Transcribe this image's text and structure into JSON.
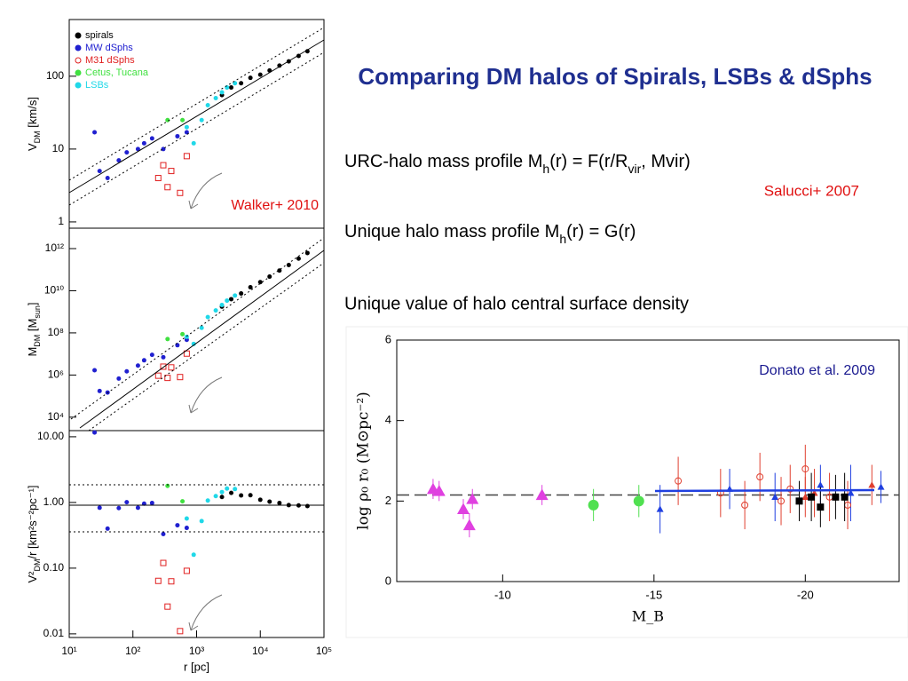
{
  "slide": {
    "title": "Comparing DM halos of Spirals, LSBs & dSphs",
    "line1_parts": [
      "URC-halo mass profile  M",
      "h",
      "(r) = F(r/R",
      "vir",
      ", Mvir)"
    ],
    "citation1": "Salucci+ 2007",
    "line2_parts": [
      "Unique  halo mass profile M",
      "h",
      "(r) = G(r)"
    ],
    "line3": "Unique value of halo central surface density"
  },
  "chart_data": [
    {
      "type": "scatter",
      "xlog": true,
      "ylog": true,
      "xlim": [
        10,
        100000
      ],
      "ylim": [
        0.82,
        600
      ],
      "yticks": [
        1,
        10,
        100
      ],
      "ylabel_parts": [
        "V",
        "DM",
        " [km/s]"
      ],
      "annotation": "Walker+ 2010",
      "legend": "top-left",
      "series": [
        {
          "name": "spirals",
          "color": "#000000",
          "marker": "dot",
          "x": [
            2500,
            3500,
            5000,
            7000,
            10000,
            14000,
            20000,
            28000,
            40000,
            55000
          ],
          "values": [
            55,
            70,
            80,
            95,
            105,
            120,
            140,
            160,
            190,
            220
          ]
        },
        {
          "name": "MW dSphs",
          "color": "#2020d0",
          "marker": "dot",
          "x": [
            25,
            30,
            40,
            60,
            80,
            120,
            150,
            200,
            300,
            500,
            700
          ],
          "values": [
            17,
            5,
            4,
            7,
            9,
            10,
            12,
            14,
            10,
            15,
            17
          ]
        },
        {
          "name": "M31 dSphs",
          "color": "#e02020",
          "marker": "square-open",
          "x": [
            250,
            300,
            350,
            400,
            550,
            700
          ],
          "values": [
            4,
            6,
            3,
            5,
            2.5,
            8
          ]
        },
        {
          "name": "Cetus, Tucana",
          "color": "#40e040",
          "marker": "dot",
          "x": [
            350,
            600
          ],
          "values": [
            25,
            25
          ]
        },
        {
          "name": "LSBs",
          "color": "#20d8e8",
          "marker": "dot",
          "x": [
            700,
            900,
            1200,
            1500,
            2000,
            2500,
            3000,
            4000
          ],
          "values": [
            20,
            12,
            25,
            40,
            50,
            60,
            70,
            80
          ]
        }
      ]
    },
    {
      "type": "scatter",
      "xlog": true,
      "ylog": true,
      "xlim": [
        10,
        100000
      ],
      "ylim": [
        2300,
        9300000000000.0
      ],
      "yticks": [
        {
          "value": 10000,
          "label": "10⁴"
        },
        {
          "value": 1000000,
          "label": "10⁶"
        },
        {
          "value": 100000000,
          "label": "10⁸"
        },
        {
          "value": 10000000000,
          "label": "10¹⁰"
        },
        {
          "value": 1000000000000,
          "label": "10¹²"
        }
      ],
      "ylabel_parts": [
        "M",
        "DM",
        " [M",
        "sun",
        "]"
      ],
      "series": [
        {
          "name": "spirals",
          "color": "#000000",
          "marker": "dot",
          "x": [
            2500,
            3500,
            5000,
            7000,
            10000,
            14000,
            20000,
            28000,
            40000,
            55000
          ],
          "values": [
            1750000000.0,
            3980000000.0,
            7400000000.0,
            14700000000.0,
            25600000000.0,
            46800000000.0,
            91000000000.0,
            166000000000.0,
            335000000000.0,
            618000000000.0
          ]
        },
        {
          "name": "MW dSphs",
          "color": "#2020d0",
          "marker": "dot",
          "x": [
            25,
            30,
            40,
            60,
            80,
            120,
            150,
            200,
            300,
            500,
            700
          ],
          "values": [
            1680000.0,
            174000.0,
            148000.0,
            680000.0,
            1500000.0,
            2800000.0,
            5000000.0,
            9100000.0,
            7000000.0,
            26000000.0,
            47000000.0
          ]
        },
        {
          "name": "M31 dSphs",
          "color": "#e02020",
          "marker": "square-open",
          "x": [
            250,
            300,
            350,
            400,
            550,
            700
          ],
          "values": [
            930000.0,
            2500000.0,
            730000.0,
            2300000.0,
            800000.0,
            10400000.0
          ]
        },
        {
          "name": "Cetus, Tucana",
          "color": "#40e040",
          "marker": "dot",
          "x": [
            350,
            600
          ],
          "values": [
            51000000.0,
            87000000.0
          ]
        },
        {
          "name": "LSBs",
          "color": "#20d8e8",
          "marker": "dot",
          "x": [
            700,
            900,
            1200,
            1500,
            2000,
            2500,
            3000,
            4000
          ],
          "values": [
            65000000.0,
            30000000.0,
            174000000.0,
            560000000.0,
            1160000000.0,
            2100000000.0,
            3400000000.0,
            5900000000.0
          ]
        }
      ]
    },
    {
      "type": "scatter",
      "xlog": true,
      "ylog": true,
      "xlim": [
        10,
        100000
      ],
      "ylim": [
        0.0088,
        12.4
      ],
      "xticks": [
        {
          "value": 10,
          "label": "10¹"
        },
        {
          "value": 100,
          "label": "10²"
        },
        {
          "value": 1000,
          "label": "10³"
        },
        {
          "value": 10000,
          "label": "10⁴"
        },
        {
          "value": 100000,
          "label": "10⁵"
        }
      ],
      "xlabel": "r [pc]",
      "yticks": [
        {
          "value": 0.01,
          "label": "0.01"
        },
        {
          "value": 0.1,
          "label": "0.10"
        },
        {
          "value": 1,
          "label": "1.00"
        },
        {
          "value": 10,
          "label": "10.00"
        }
      ],
      "ylabel_parts": [
        "V²",
        "DM",
        "/r [km²s⁻²pc⁻¹]"
      ],
      "series": [
        {
          "name": "spirals",
          "color": "#000000",
          "marker": "dot",
          "x": [
            2500,
            3500,
            5000,
            7000,
            10000,
            14000,
            20000,
            28000,
            40000,
            55000
          ],
          "values": [
            1.21,
            1.4,
            1.28,
            1.29,
            1.1,
            1.03,
            0.98,
            0.91,
            0.9,
            0.88
          ]
        },
        {
          "name": "MW dSphs",
          "color": "#2020d0",
          "marker": "dot",
          "x": [
            25,
            30,
            40,
            60,
            80,
            120,
            150,
            200,
            300,
            500,
            700
          ],
          "values": [
            11.6,
            0.83,
            0.4,
            0.82,
            1.01,
            0.83,
            0.96,
            0.98,
            0.33,
            0.45,
            0.41
          ]
        },
        {
          "name": "M31 dSphs",
          "color": "#e02020",
          "marker": "square-open",
          "x": [
            250,
            300,
            350,
            400,
            550,
            700
          ],
          "values": [
            0.064,
            0.12,
            0.026,
            0.063,
            0.011,
            0.091
          ]
        },
        {
          "name": "Cetus, Tucana",
          "color": "#40e040",
          "marker": "dot",
          "x": [
            350,
            600
          ],
          "values": [
            1.79,
            1.04
          ]
        },
        {
          "name": "LSBs",
          "color": "#20d8e8",
          "marker": "dot",
          "x": [
            700,
            900,
            1200,
            1500,
            2000,
            2500,
            3000,
            4000
          ],
          "values": [
            0.57,
            0.16,
            0.52,
            1.07,
            1.25,
            1.44,
            1.63,
            1.6
          ]
        }
      ]
    },
    {
      "type": "scatter",
      "xlim": [
        -6.5,
        -23.1
      ],
      "ylim": [
        0,
        6
      ],
      "xticks": [
        -10,
        -15,
        -20
      ],
      "yticks": [
        0,
        2,
        4,
        6
      ],
      "xlabel": "M_B",
      "ylabel": "log ρ₀ r₀ (M⊙pc⁻²)",
      "annotation": "Donato et al. 2009",
      "hline": 2.15,
      "series": [
        {
          "color": "#e040e0",
          "marker": "triangle",
          "x": [
            -7.7,
            -7.9,
            -8.7,
            -8.9,
            -9.0,
            -11.3
          ],
          "values": [
            2.3,
            2.25,
            1.8,
            1.4,
            2.05,
            2.15
          ],
          "errors": [
            0.25,
            0.25,
            0.25,
            0.3,
            0.25,
            0.25
          ]
        },
        {
          "color": "#50e050",
          "marker": "circle",
          "x": [
            -13.0,
            -14.5
          ],
          "values": [
            1.9,
            2.0
          ],
          "errors": [
            0.4,
            0.4
          ]
        },
        {
          "color": "#2040e0",
          "marker": "triangle",
          "x": [
            -15.2,
            -17.5,
            -19.0,
            -20.5,
            -21.5,
            -22.5
          ],
          "values": [
            1.8,
            2.3,
            2.1,
            2.4,
            2.2,
            2.35
          ],
          "errors": [
            0.6,
            0.5,
            0.6,
            0.5,
            0.7,
            0.4
          ]
        },
        {
          "color": "#e04030",
          "marker": "circle-open",
          "x": [
            -15.8,
            -17.2,
            -18.0,
            -18.5,
            -19.2,
            -19.5,
            -20.0,
            -20.8,
            -21.4
          ],
          "values": [
            2.5,
            2.2,
            1.9,
            2.6,
            2.0,
            2.3,
            2.8,
            2.1,
            1.9
          ],
          "errors": [
            0.6,
            0.6,
            0.6,
            0.6,
            0.6,
            0.6,
            0.6,
            0.6,
            0.6
          ]
        },
        {
          "color": "#e04030",
          "marker": "triangle",
          "x": [
            -20.0,
            -20.3,
            -22.2
          ],
          "values": [
            2.1,
            2.2,
            2.4
          ],
          "errors": [
            0.5,
            0.6,
            0.5
          ]
        },
        {
          "color": "#000000",
          "marker": "square",
          "x": [
            -19.8,
            -20.2,
            -20.5,
            -21.0,
            -21.3
          ],
          "values": [
            2.0,
            2.1,
            1.85,
            2.1,
            2.1
          ],
          "errors": [
            0.5,
            0.6,
            0.5,
            0.55,
            0.6
          ]
        }
      ]
    }
  ]
}
